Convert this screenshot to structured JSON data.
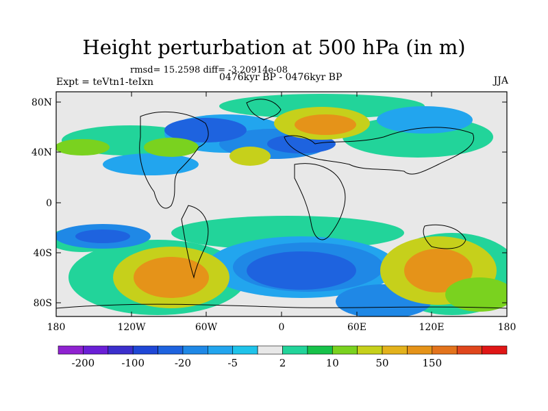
{
  "title": "Height perturbation at 500 hPa (in m)",
  "stats": "rmsd= 15.2598 diff= -3.20914e-08",
  "experiment": "Expt = teVtn1-teIxn",
  "period": "0476kyr BP - 0476kyr BP",
  "season": "JJA",
  "lat_ticks": [
    "80N",
    "40N",
    "0",
    "40S",
    "80S"
  ],
  "lon_ticks": [
    "180",
    "120W",
    "60W",
    "0",
    "60E",
    "120E",
    "180"
  ],
  "colorbar": {
    "labels": [
      "-200",
      "-100",
      "-20",
      "-5",
      "2",
      "10",
      "50",
      "150"
    ],
    "colors": [
      "#8f22d0",
      "#6a1fd6",
      "#3b2fcc",
      "#1f47d6",
      "#1e63df",
      "#1f88e6",
      "#22a5ee",
      "#1fc3ea",
      "#e8e8e8",
      "#22d49a",
      "#17c24a",
      "#7ad21f",
      "#c6d01b",
      "#e3b21c",
      "#e59319",
      "#e3731c",
      "#e0461c",
      "#e01616"
    ]
  },
  "fields": [
    {
      "name": "arctic-negative",
      "color": "#1e63df"
    },
    {
      "name": "high-lat-positive",
      "color": "#e3b21c"
    },
    {
      "name": "southern-ocean-negative",
      "color": "#1e63df"
    },
    {
      "name": "south-pacific-positive",
      "color": "#e3731c"
    }
  ]
}
